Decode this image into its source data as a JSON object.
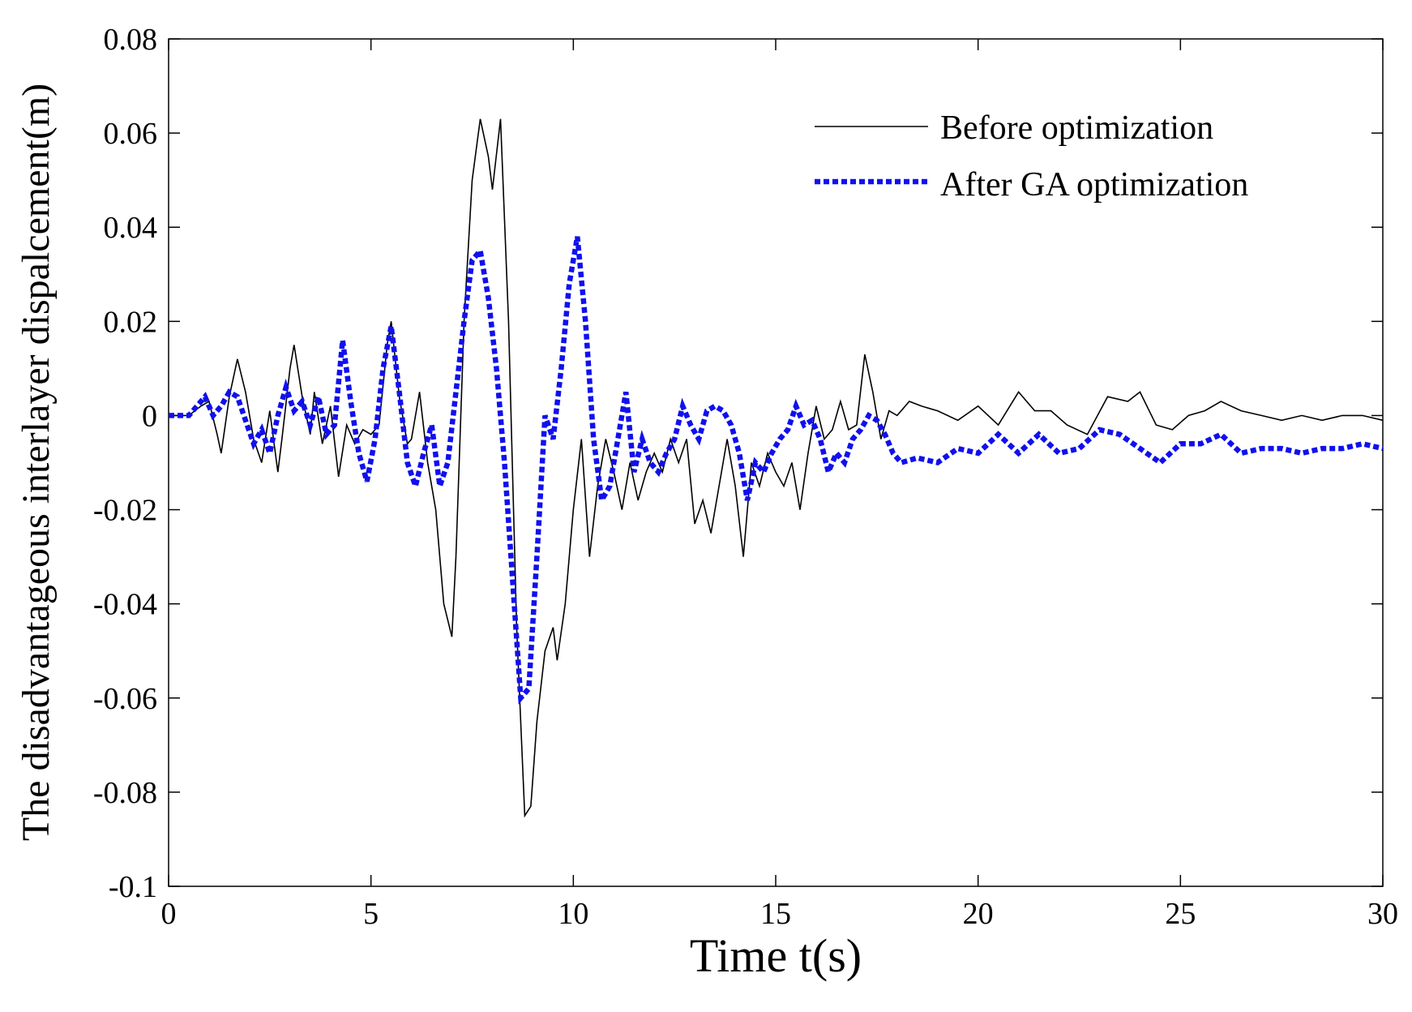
{
  "chart_data": {
    "type": "line",
    "title": "",
    "xlabel": "Time t(s)",
    "ylabel": "The disadvantageous interlayer dispalcement(m)",
    "xlim": [
      0,
      30
    ],
    "ylim": [
      -0.1,
      0.08
    ],
    "xticks": [
      0,
      5,
      10,
      15,
      20,
      25,
      30
    ],
    "xtick_labels": [
      "0",
      "5",
      "10",
      "15",
      "20",
      "25",
      "30"
    ],
    "yticks": [
      -0.1,
      -0.08,
      -0.06,
      -0.04,
      -0.02,
      0,
      0.02,
      0.04,
      0.06,
      0.08
    ],
    "ytick_labels": [
      "-0.1",
      "-0.08",
      "-0.06",
      "-0.04",
      "-0.02",
      "0",
      "0.02",
      "0.04",
      "0.06",
      "0.08"
    ],
    "grid": false,
    "legend_position": "top-right",
    "series": [
      {
        "name": "Before optimization",
        "color": "#000000",
        "style": "solid",
        "x": [
          0,
          0.5,
          0.8,
          1.0,
          1.2,
          1.3,
          1.5,
          1.7,
          1.9,
          2.1,
          2.3,
          2.5,
          2.7,
          2.8,
          3.0,
          3.1,
          3.3,
          3.5,
          3.6,
          3.8,
          4.0,
          4.2,
          4.4,
          4.6,
          4.8,
          5.0,
          5.2,
          5.4,
          5.5,
          5.7,
          5.9,
          6.0,
          6.2,
          6.4,
          6.6,
          6.8,
          7.0,
          7.1,
          7.3,
          7.5,
          7.7,
          7.9,
          8.0,
          8.2,
          8.4,
          8.6,
          8.8,
          8.95,
          9.1,
          9.3,
          9.5,
          9.6,
          9.8,
          10.0,
          10.2,
          10.4,
          10.6,
          10.8,
          11.0,
          11.2,
          11.4,
          11.6,
          11.8,
          12.0,
          12.2,
          12.4,
          12.6,
          12.8,
          13.0,
          13.2,
          13.4,
          13.6,
          13.8,
          14.0,
          14.2,
          14.4,
          14.6,
          14.8,
          15.0,
          15.2,
          15.4,
          15.6,
          15.8,
          16.0,
          16.2,
          16.4,
          16.6,
          16.8,
          17.0,
          17.2,
          17.4,
          17.6,
          17.8,
          18.0,
          18.3,
          18.6,
          19.0,
          19.5,
          20.0,
          20.5,
          21.0,
          21.4,
          21.8,
          22.2,
          22.7,
          23.2,
          23.7,
          24.0,
          24.4,
          24.8,
          25.2,
          25.6,
          26.0,
          26.5,
          27.0,
          27.5,
          28.0,
          28.5,
          29.0,
          29.5,
          30.0
        ],
        "y": [
          0,
          0,
          0.002,
          0.003,
          -0.004,
          -0.008,
          0.004,
          0.012,
          0.005,
          -0.005,
          -0.01,
          0.001,
          -0.012,
          -0.005,
          0.01,
          0.015,
          0.004,
          -0.004,
          0.005,
          -0.006,
          0.002,
          -0.013,
          -0.002,
          -0.006,
          -0.003,
          -0.004,
          -0.002,
          0.015,
          0.02,
          0.004,
          -0.006,
          -0.005,
          0.005,
          -0.01,
          -0.02,
          -0.04,
          -0.047,
          -0.03,
          0.02,
          0.05,
          0.063,
          0.055,
          0.048,
          0.063,
          0.02,
          -0.045,
          -0.085,
          -0.083,
          -0.065,
          -0.05,
          -0.045,
          -0.052,
          -0.04,
          -0.02,
          -0.005,
          -0.03,
          -0.015,
          -0.005,
          -0.012,
          -0.02,
          -0.01,
          -0.018,
          -0.012,
          -0.008,
          -0.012,
          -0.005,
          -0.01,
          -0.005,
          -0.023,
          -0.018,
          -0.025,
          -0.015,
          -0.005,
          -0.015,
          -0.03,
          -0.01,
          -0.015,
          -0.008,
          -0.012,
          -0.015,
          -0.01,
          -0.02,
          -0.008,
          0.002,
          -0.005,
          -0.003,
          0.003,
          -0.003,
          -0.002,
          0.013,
          0.005,
          -0.005,
          0.001,
          0,
          0.003,
          0.002,
          0.001,
          -0.001,
          0.002,
          -0.002,
          0.005,
          0.001,
          0.001,
          -0.002,
          -0.004,
          0.004,
          0.003,
          0.005,
          -0.002,
          -0.003,
          0,
          0.001,
          0.003,
          0.001,
          0,
          -0.001,
          0,
          -0.001,
          0,
          0,
          -0.001
        ]
      },
      {
        "name": "After GA optimization",
        "color": "#1010ee",
        "style": "dotted",
        "x": [
          0,
          0.5,
          0.7,
          0.9,
          1.1,
          1.3,
          1.5,
          1.7,
          1.9,
          2.1,
          2.3,
          2.5,
          2.7,
          2.9,
          3.1,
          3.3,
          3.5,
          3.7,
          3.9,
          4.1,
          4.3,
          4.5,
          4.7,
          4.9,
          5.1,
          5.3,
          5.5,
          5.7,
          5.9,
          6.1,
          6.3,
          6.5,
          6.7,
          6.9,
          7.1,
          7.3,
          7.5,
          7.7,
          7.9,
          8.1,
          8.3,
          8.5,
          8.7,
          8.9,
          9.1,
          9.3,
          9.5,
          9.7,
          9.9,
          10.1,
          10.3,
          10.5,
          10.7,
          10.9,
          11.1,
          11.3,
          11.5,
          11.7,
          11.9,
          12.1,
          12.3,
          12.5,
          12.7,
          12.9,
          13.1,
          13.3,
          13.5,
          13.7,
          13.9,
          14.1,
          14.3,
          14.5,
          14.7,
          14.9,
          15.1,
          15.3,
          15.5,
          15.7,
          15.9,
          16.1,
          16.3,
          16.5,
          16.7,
          16.9,
          17.1,
          17.3,
          17.5,
          17.7,
          17.9,
          18.1,
          18.5,
          19.0,
          19.5,
          20.0,
          20.5,
          21.0,
          21.5,
          22.0,
          22.5,
          23.0,
          23.5,
          24.0,
          24.5,
          25.0,
          25.5,
          26.0,
          26.5,
          27.0,
          27.5,
          28.0,
          28.5,
          29.0,
          29.5,
          30.0
        ],
        "y": [
          0,
          0,
          0.002,
          0.004,
          0,
          0.002,
          0.005,
          0.004,
          -0.001,
          -0.006,
          -0.003,
          -0.008,
          0,
          0.006,
          0.001,
          0.003,
          -0.002,
          0.004,
          -0.004,
          -0.002,
          0.016,
          0.003,
          -0.008,
          -0.014,
          -0.005,
          0.01,
          0.019,
          0.005,
          -0.01,
          -0.015,
          -0.008,
          -0.002,
          -0.015,
          -0.01,
          0.005,
          0.02,
          0.033,
          0.035,
          0.025,
          0.01,
          -0.01,
          -0.035,
          -0.06,
          -0.058,
          -0.03,
          0,
          -0.005,
          0.01,
          0.028,
          0.038,
          0.02,
          -0.005,
          -0.018,
          -0.015,
          -0.005,
          0.005,
          -0.012,
          -0.005,
          -0.01,
          -0.012,
          -0.008,
          -0.005,
          0.002,
          -0.002,
          -0.005,
          0.001,
          0.002,
          0.001,
          -0.002,
          -0.008,
          -0.018,
          -0.01,
          -0.012,
          -0.008,
          -0.005,
          -0.003,
          0.002,
          -0.002,
          -0.001,
          -0.005,
          -0.012,
          -0.008,
          -0.01,
          -0.005,
          -0.003,
          0,
          -0.001,
          -0.004,
          -0.008,
          -0.01,
          -0.009,
          -0.01,
          -0.007,
          -0.008,
          -0.004,
          -0.008,
          -0.004,
          -0.008,
          -0.007,
          -0.003,
          -0.004,
          -0.007,
          -0.01,
          -0.006,
          -0.006,
          -0.004,
          -0.008,
          -0.007,
          -0.007,
          -0.008,
          -0.007,
          -0.007,
          -0.006,
          -0.007
        ]
      }
    ]
  }
}
